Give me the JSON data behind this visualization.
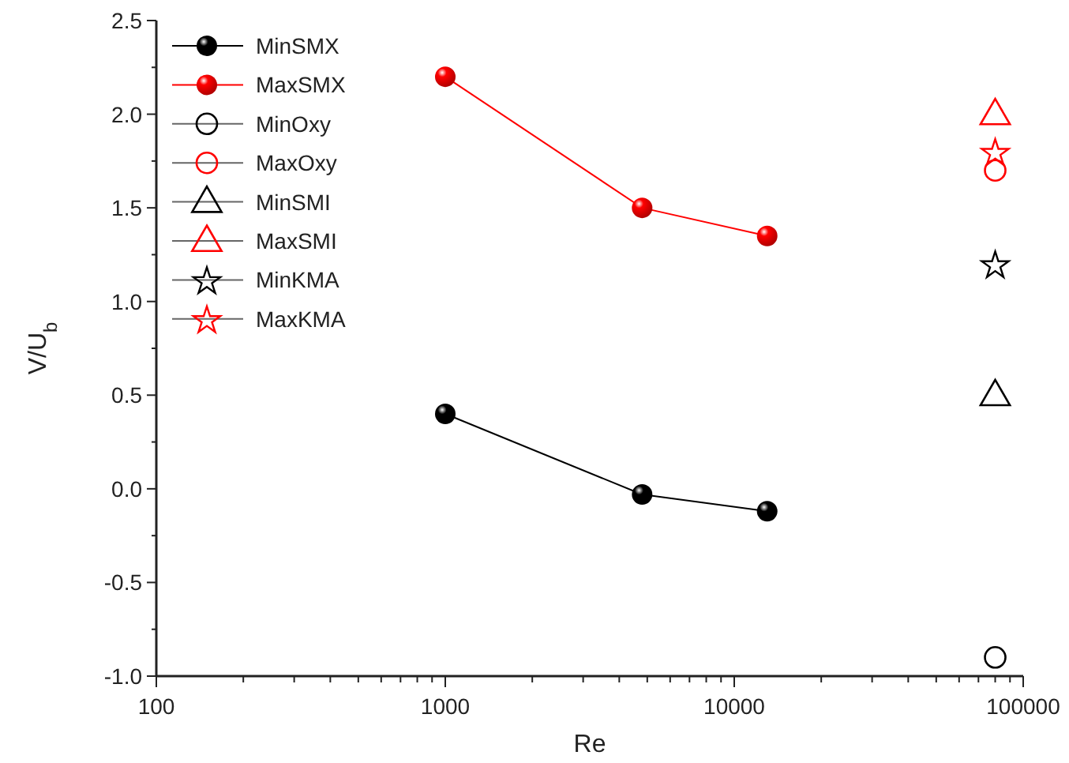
{
  "chart_data": {
    "type": "line",
    "xlabel": "Re",
    "ylabel": "V/U$_{b}$",
    "log": "x",
    "xlim": [
      100,
      100000
    ],
    "ylim": [
      -1.0,
      2.5
    ],
    "xticks": [
      100,
      {
        "value": 200,
        "label": null
      },
      {
        "value": 300,
        "label": null
      },
      {
        "value": 400,
        "label": null
      },
      {
        "value": 500,
        "label": null
      },
      {
        "value": 600,
        "label": null
      },
      {
        "value": 700,
        "label": null
      },
      {
        "value": 800,
        "label": null
      },
      {
        "value": 900,
        "label": null
      },
      1000,
      {
        "value": 2000,
        "label": null
      },
      {
        "value": 3000,
        "label": null
      },
      {
        "value": 4000,
        "label": null
      },
      {
        "value": 5000,
        "label": null
      },
      {
        "value": 6000,
        "label": null
      },
      {
        "value": 7000,
        "label": null
      },
      {
        "value": 8000,
        "label": null
      },
      {
        "value": 9000,
        "label": null
      },
      10000,
      {
        "value": 20000,
        "label": null
      },
      {
        "value": 30000,
        "label": null
      },
      {
        "value": 40000,
        "label": null
      },
      {
        "value": 50000,
        "label": null
      },
      {
        "value": 60000,
        "label": null
      },
      {
        "value": 70000,
        "label": null
      },
      {
        "value": 80000,
        "label": null
      },
      {
        "value": 90000,
        "label": null
      },
      100000
    ],
    "yticks": [
      {
        "value": -1.0,
        "label": "-1.0"
      },
      {
        "value": -0.75,
        "label": null
      },
      {
        "value": -0.5,
        "label": "-0.5"
      },
      {
        "value": -0.25,
        "label": null
      },
      {
        "value": 0.0,
        "label": "0.0"
      },
      {
        "value": 0.25,
        "label": null
      },
      {
        "value": 0.5,
        "label": "0.5"
      },
      {
        "value": 0.75,
        "label": null
      },
      {
        "value": 1.0,
        "label": "1.0"
      },
      {
        "value": 1.25,
        "label": null
      },
      {
        "value": 1.5,
        "label": "1.5"
      },
      {
        "value": 1.75,
        "label": null
      },
      {
        "value": 2.0,
        "label": "2.0"
      },
      {
        "value": 2.25,
        "label": null
      },
      {
        "value": 2.5,
        "label": "2.5"
      }
    ],
    "grid": false,
    "legend": "top left",
    "series": [
      {
        "name": "MinSMX",
        "marker": "circle",
        "color": "#000000",
        "x": [
          1000,
          4800,
          13000
        ],
        "values": [
          0.4,
          -0.03,
          -0.12
        ]
      },
      {
        "name": "MaxSMX",
        "marker": "circle",
        "color": "#ff0000",
        "x": [
          1000,
          4800,
          13000
        ],
        "values": [
          2.2,
          1.5,
          1.35
        ]
      },
      {
        "name": "MinOxy",
        "type": "scatter",
        "marker": "circle",
        "color": "#000000",
        "x": [
          80000
        ],
        "values": [
          -0.9
        ]
      },
      {
        "name": "MaxOxy",
        "type": "scatter",
        "marker": "circle",
        "color": "#ff0000",
        "x": [
          80000
        ],
        "values": [
          1.7
        ]
      },
      {
        "name": "MinSMI",
        "type": "scatter",
        "marker": "triangle",
        "color": "#000000",
        "x": [
          80000
        ],
        "values": [
          0.5
        ]
      },
      {
        "name": "MaxSMI",
        "type": "scatter",
        "marker": "triangle",
        "color": "#ff0000",
        "x": [
          80000
        ],
        "values": [
          2.0
        ]
      },
      {
        "name": "MinKMA",
        "type": "scatter",
        "marker": "star",
        "color": "#000000",
        "x": [
          80000
        ],
        "values": [
          1.2
        ]
      },
      {
        "name": "MaxKMA",
        "type": "scatter",
        "marker": "star",
        "color": "#ff0000",
        "x": [
          80000
        ],
        "values": [
          1.8
        ]
      }
    ]
  }
}
